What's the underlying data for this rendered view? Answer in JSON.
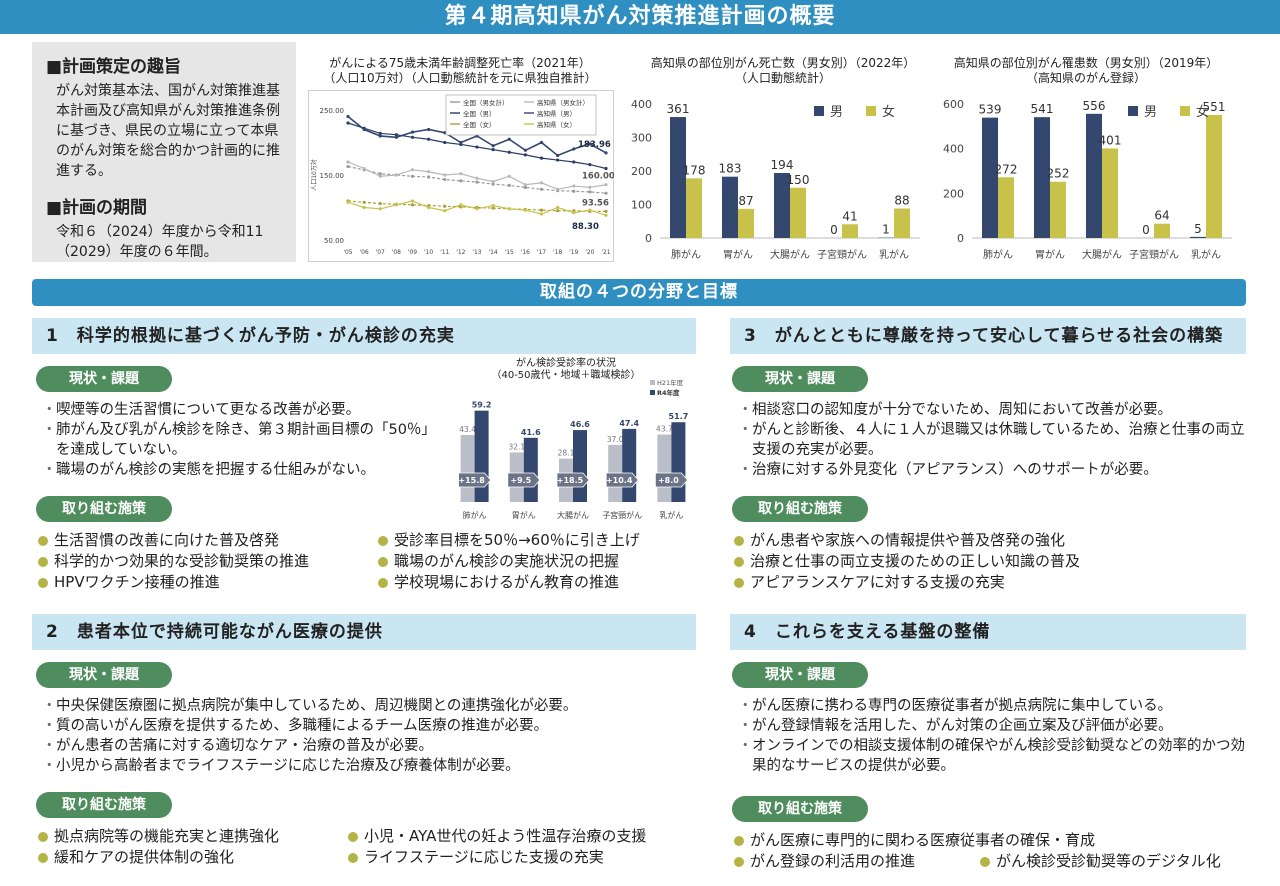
{
  "page_title": "第４期高知県がん対策推進計画の概要",
  "plan": {
    "purpose_heading": "■計画策定の趣旨",
    "purpose_text": "がん対策基本法、国がん対策推進基本計画及び高知県がん対策推進条例に基づき、県民の立場に立って本県のがん対策を総合的かつ計画的に推進する。",
    "period_heading": "■計画の期間",
    "period_text": "令和６（2024）年度から令和11（2029）年度の６年間。"
  },
  "mortality_chart": {
    "title_line1": "がんによる75歳未満年齢調整死亡率（2021年）",
    "title_line2": "（人口10万対）（人口動態統計を元に県独自推計）",
    "ylabel": "人口10万対",
    "legend": [
      "全国（男女計）",
      "高知県（男女計）",
      "全国（男）",
      "高知県（男）",
      "全国（女）",
      "高知県（女）"
    ],
    "end_labels": [
      "183.96",
      "160.00",
      "93.56",
      "88.30"
    ]
  },
  "deaths_chart": {
    "title_line1": "高知県の部位別がん死亡数（男女別）（2022年）",
    "title_line2": "（人口動態統計）",
    "legend_male": "男",
    "legend_female": "女"
  },
  "incidence_chart": {
    "title_line1": "高知県の部位別がん罹患数（男女別）（2019年）",
    "title_line2": "（高知県のがん登録）",
    "legend_male": "男",
    "legend_female": "女"
  },
  "screening_chart": {
    "title_line1": "がん検診受診率の状況",
    "title_line2": "（40-50歳代・地域＋職域検診）",
    "legend_old": "H21年度",
    "legend_new": "R4年度"
  },
  "chart_data": [
    {
      "type": "line",
      "x": [
        "'05",
        "'06",
        "'07",
        "'08",
        "'09",
        "'10",
        "'11",
        "'12",
        "'13",
        "'14",
        "'15",
        "'16",
        "'17",
        "'18",
        "'19",
        "'20",
        "'21"
      ],
      "ylim": [
        50,
        250
      ],
      "yticks": [
        "50.00",
        "150.00",
        "250.00"
      ],
      "legend_position": "top-right",
      "series": [
        {
          "name": "全国（男女計）",
          "color": "#9a9a9a",
          "values": [
            163,
            158,
            152,
            150,
            148,
            147,
            143,
            141,
            139,
            136,
            134,
            131,
            128,
            126,
            125,
            124,
            122
          ]
        },
        {
          "name": "高知県（男女計）",
          "color": "#b8b8b8",
          "values": [
            170,
            160,
            148,
            150,
            158,
            155,
            150,
            152,
            145,
            140,
            148,
            135,
            138,
            128,
            133,
            131,
            135
          ]
        },
        {
          "name": "全国（男）",
          "color": "#2b3d66",
          "values": [
            230,
            222,
            214,
            212,
            208,
            205,
            200,
            197,
            193,
            189,
            185,
            181,
            176,
            173,
            170,
            166,
            160
          ]
        },
        {
          "name": "高知県（男）",
          "color": "#34476e",
          "values": [
            240,
            220,
            210,
            208,
            216,
            220,
            215,
            200,
            210,
            195,
            205,
            188,
            200,
            180,
            190,
            198,
            184
          ]
        },
        {
          "name": "全国（女）",
          "color": "#a8a23a",
          "values": [
            110,
            108,
            106,
            105,
            104,
            103,
            102,
            101,
            100,
            99,
            98,
            97,
            96,
            95,
            95,
            94,
            94
          ]
        },
        {
          "name": "高知県（女）",
          "color": "#c8c24a",
          "values": [
            108,
            100,
            98,
            104,
            110,
            100,
            95,
            104,
            98,
            103,
            98,
            96,
            90,
            100,
            92,
            96,
            88
          ]
        }
      ]
    },
    {
      "type": "bar",
      "categories": [
        "肺がん",
        "胃がん",
        "大腸がん",
        "子宮頸がん",
        "乳がん"
      ],
      "ylim": [
        0,
        400
      ],
      "yticks": [
        "0",
        "100",
        "200",
        "300",
        "400"
      ],
      "series": [
        {
          "name": "男",
          "color": "#34476e",
          "values": [
            361,
            183,
            194,
            0,
            1
          ]
        },
        {
          "name": "女",
          "color": "#c8c24a",
          "values": [
            178,
            87,
            150,
            41,
            88
          ]
        }
      ]
    },
    {
      "type": "bar",
      "categories": [
        "肺がん",
        "胃がん",
        "大腸がん",
        "子宮頸がん",
        "乳がん"
      ],
      "ylim": [
        0,
        600
      ],
      "yticks": [
        "0",
        "200",
        "400",
        "600"
      ],
      "series": [
        {
          "name": "男",
          "color": "#34476e",
          "values": [
            539,
            541,
            556,
            0,
            5
          ]
        },
        {
          "name": "女",
          "color": "#c8c24a",
          "values": [
            272,
            252,
            401,
            64,
            551
          ]
        }
      ]
    },
    {
      "type": "bar",
      "categories": [
        "肺がん",
        "胃がん",
        "大腸がん",
        "子宮頸がん",
        "乳がん"
      ],
      "ylim": [
        0,
        70
      ],
      "series": [
        {
          "name": "H21年度",
          "color": "#b9bec8",
          "values": [
            43.4,
            32.1,
            28.1,
            37.0,
            43.7
          ]
        },
        {
          "name": "R4年度",
          "color": "#34476e",
          "values": [
            59.2,
            41.6,
            46.6,
            47.4,
            51.7
          ]
        }
      ],
      "differences": [
        "+15.8",
        "+9.5",
        "+18.5",
        "+10.4",
        "+8.0"
      ]
    }
  ],
  "goals_banner": "取組の４つの分野と目標",
  "status_label": "現状・課題",
  "measures_label": "取り組む施策",
  "sections": [
    {
      "heading": "1　科学的根拠に基づくがん予防・がん検診の充実",
      "issues": [
        "喫煙等の生活習慣について更なる改善が必要。",
        "肺がん及び乳がん検診を除き、第３期計画目標の「50％」を達成していない。",
        "職場のがん検診の実態を把握する仕組みがない。"
      ],
      "measures_left": [
        "生活習慣の改善に向けた普及啓発",
        "科学的かつ効果的な受診勧奨策の推進",
        "HPVワクチン接種の推進"
      ],
      "measures_right": [
        "受診率目標を50％→60％に引き上げ",
        "職場のがん検診の実施状況の把握",
        "学校現場におけるがん教育の推進"
      ]
    },
    {
      "heading": "2　患者本位で持続可能ながん医療の提供",
      "issues": [
        "中央保健医療圏に拠点病院が集中しているため、周辺機関との連携強化が必要。",
        "質の高いがん医療を提供するため、多職種によるチーム医療の推進が必要。",
        "がん患者の苦痛に対する適切なケア・治療の普及が必要。",
        "小児から高齢者までライフステージに応じた治療及び療養体制が必要。"
      ],
      "measures_left": [
        "拠点病院等の機能充実と連携強化",
        "緩和ケアの提供体制の強化"
      ],
      "measures_right": [
        "小児・AYA世代の妊よう性温存治療の支援",
        "ライフステージに応じた支援の充実"
      ]
    },
    {
      "heading": "3　がんとともに尊厳を持って安心して暮らせる社会の構築",
      "issues": [
        "相談窓口の認知度が十分でないため、周知において改善が必要。",
        "がんと診断後、４人に１人が退職又は休職しているため、治療と仕事の両立支援の充実が必要。",
        "治療に対する外見変化（アピアランス）へのサポートが必要。"
      ],
      "measures": [
        "がん患者や家族への情報提供や普及啓発の強化",
        "治療と仕事の両立支援のための正しい知識の普及",
        "アピアランスケアに対する支援の充実"
      ]
    },
    {
      "heading": "4　これらを支える基盤の整備",
      "issues": [
        "がん医療に携わる専門の医療従事者が拠点病院に集中している。",
        "がん登録情報を活用した、がん対策の企画立案及び評価が必要。",
        "オンラインでの相談支援体制の確保やがん検診受診勧奨などの効率的かつ効果的なサービスの提供が必要。"
      ],
      "measures_left": [
        "がん医療に専門的に関わる医療従事者の確保・育成",
        "がん登録の利活用の推進"
      ],
      "measures_right": [
        "がん検診受診勧奨等のデジタル化"
      ]
    }
  ]
}
